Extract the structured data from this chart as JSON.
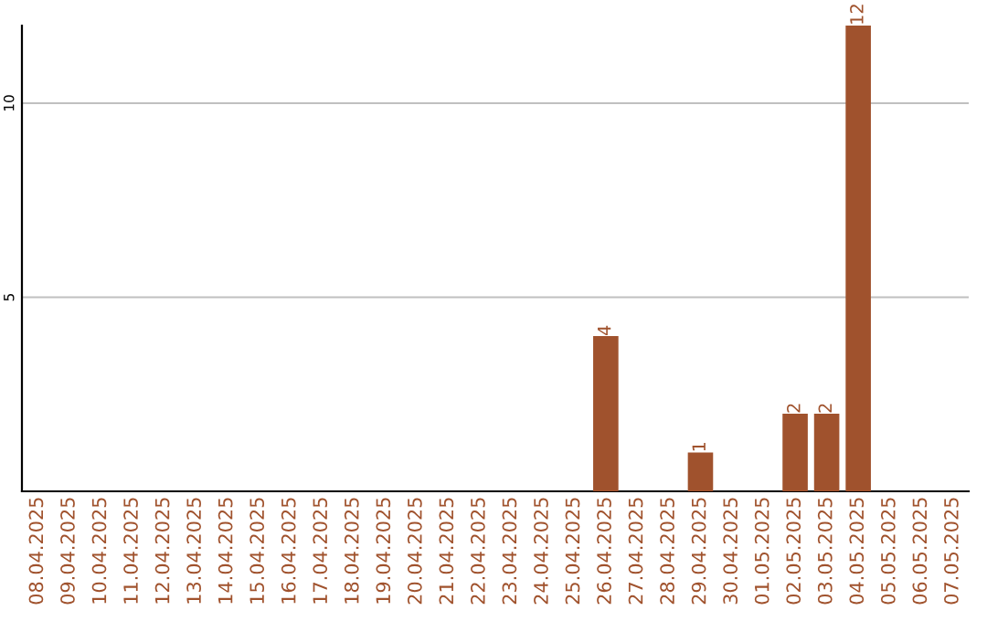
{
  "chart_data": {
    "type": "bar",
    "categories": [
      "08.04.2025",
      "09.04.2025",
      "10.04.2025",
      "11.04.2025",
      "12.04.2025",
      "13.04.2025",
      "14.04.2025",
      "15.04.2025",
      "16.04.2025",
      "17.04.2025",
      "18.04.2025",
      "19.04.2025",
      "20.04.2025",
      "21.04.2025",
      "22.04.2025",
      "23.04.2025",
      "24.04.2025",
      "25.04.2025",
      "26.04.2025",
      "27.04.2025",
      "28.04.2025",
      "29.04.2025",
      "30.04.2025",
      "01.05.2025",
      "02.05.2025",
      "03.05.2025",
      "04.05.2025",
      "05.05.2025",
      "06.05.2025",
      "07.05.2025"
    ],
    "values": [
      0,
      0,
      0,
      0,
      0,
      0,
      0,
      0,
      0,
      0,
      0,
      0,
      0,
      0,
      0,
      0,
      0,
      0,
      4,
      0,
      0,
      1,
      0,
      0,
      2,
      2,
      12,
      0,
      0,
      0
    ],
    "value_labels": [
      null,
      null,
      null,
      null,
      null,
      null,
      null,
      null,
      null,
      null,
      null,
      null,
      null,
      null,
      null,
      null,
      null,
      null,
      "4",
      null,
      null,
      "1",
      null,
      null,
      "2",
      "2",
      "12",
      null,
      null,
      null
    ],
    "color": "#a0522d",
    "ylim": [
      0,
      12
    ],
    "yticks": [
      5,
      10
    ],
    "grid": "y",
    "legend": false
  }
}
